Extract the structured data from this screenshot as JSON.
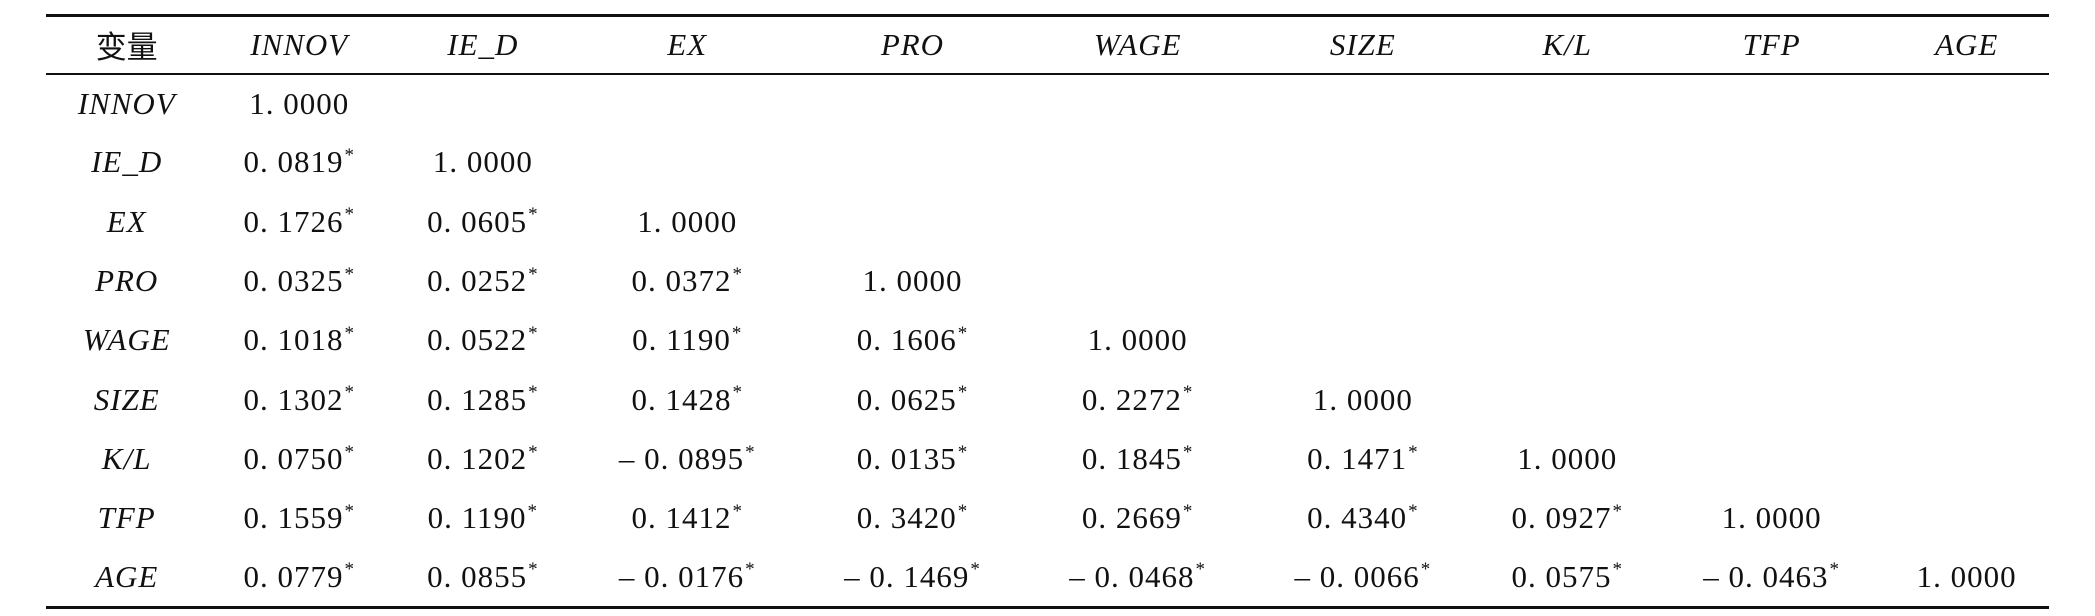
{
  "table": {
    "corner_label": "变量",
    "columns": [
      "INNOV",
      "IE_D",
      "EX",
      "PRO",
      "WAGE",
      "SIZE",
      "K/L",
      "TFP",
      "AGE"
    ],
    "rows": [
      {
        "label": "INNOV",
        "cells": [
          {
            "v": "1. 0000",
            "s": ""
          }
        ]
      },
      {
        "label": "IE_D",
        "cells": [
          {
            "v": "0. 0819",
            "s": "*"
          },
          {
            "v": "1. 0000",
            "s": ""
          }
        ]
      },
      {
        "label": "EX",
        "cells": [
          {
            "v": "0. 1726",
            "s": "*"
          },
          {
            "v": "0. 0605",
            "s": "*"
          },
          {
            "v": "1. 0000",
            "s": ""
          }
        ]
      },
      {
        "label": "PRO",
        "cells": [
          {
            "v": "0. 0325",
            "s": "*"
          },
          {
            "v": "0. 0252",
            "s": "*"
          },
          {
            "v": "0. 0372",
            "s": "*"
          },
          {
            "v": "1. 0000",
            "s": ""
          }
        ]
      },
      {
        "label": "WAGE",
        "cells": [
          {
            "v": "0. 1018",
            "s": "*"
          },
          {
            "v": "0. 0522",
            "s": "*"
          },
          {
            "v": "0. 1190",
            "s": "*"
          },
          {
            "v": "0. 1606",
            "s": "*"
          },
          {
            "v": "1. 0000",
            "s": ""
          }
        ]
      },
      {
        "label": "SIZE",
        "cells": [
          {
            "v": "0. 1302",
            "s": "*"
          },
          {
            "v": "0. 1285",
            "s": "*"
          },
          {
            "v": "0. 1428",
            "s": "*"
          },
          {
            "v": "0. 0625",
            "s": "*"
          },
          {
            "v": "0. 2272",
            "s": "*"
          },
          {
            "v": "1. 0000",
            "s": ""
          }
        ]
      },
      {
        "label": "K/L",
        "cells": [
          {
            "v": "0. 0750",
            "s": "*"
          },
          {
            "v": "0. 1202",
            "s": "*"
          },
          {
            "v": "– 0. 0895",
            "s": "*"
          },
          {
            "v": "0. 0135",
            "s": "*"
          },
          {
            "v": "0. 1845",
            "s": "*"
          },
          {
            "v": "0. 1471",
            "s": "*"
          },
          {
            "v": "1. 0000",
            "s": ""
          }
        ]
      },
      {
        "label": "TFP",
        "cells": [
          {
            "v": "0. 1559",
            "s": "*"
          },
          {
            "v": "0. 1190",
            "s": "*"
          },
          {
            "v": "0. 1412",
            "s": "*"
          },
          {
            "v": "0. 3420",
            "s": "*"
          },
          {
            "v": "0. 2669",
            "s": "*"
          },
          {
            "v": "0. 4340",
            "s": "*"
          },
          {
            "v": "0. 0927",
            "s": "*"
          },
          {
            "v": "1. 0000",
            "s": ""
          }
        ]
      },
      {
        "label": "AGE",
        "cells": [
          {
            "v": "0. 0779",
            "s": "*"
          },
          {
            "v": "0. 0855",
            "s": "*"
          },
          {
            "v": "– 0. 0176",
            "s": "*"
          },
          {
            "v": "– 0. 1469",
            "s": "*"
          },
          {
            "v": "– 0. 0468",
            "s": "*"
          },
          {
            "v": "– 0. 0066",
            "s": "*"
          },
          {
            "v": "0. 0575",
            "s": "*"
          },
          {
            "v": "– 0. 0463",
            "s": "*"
          },
          {
            "v": "1. 0000",
            "s": ""
          }
        ]
      }
    ]
  }
}
